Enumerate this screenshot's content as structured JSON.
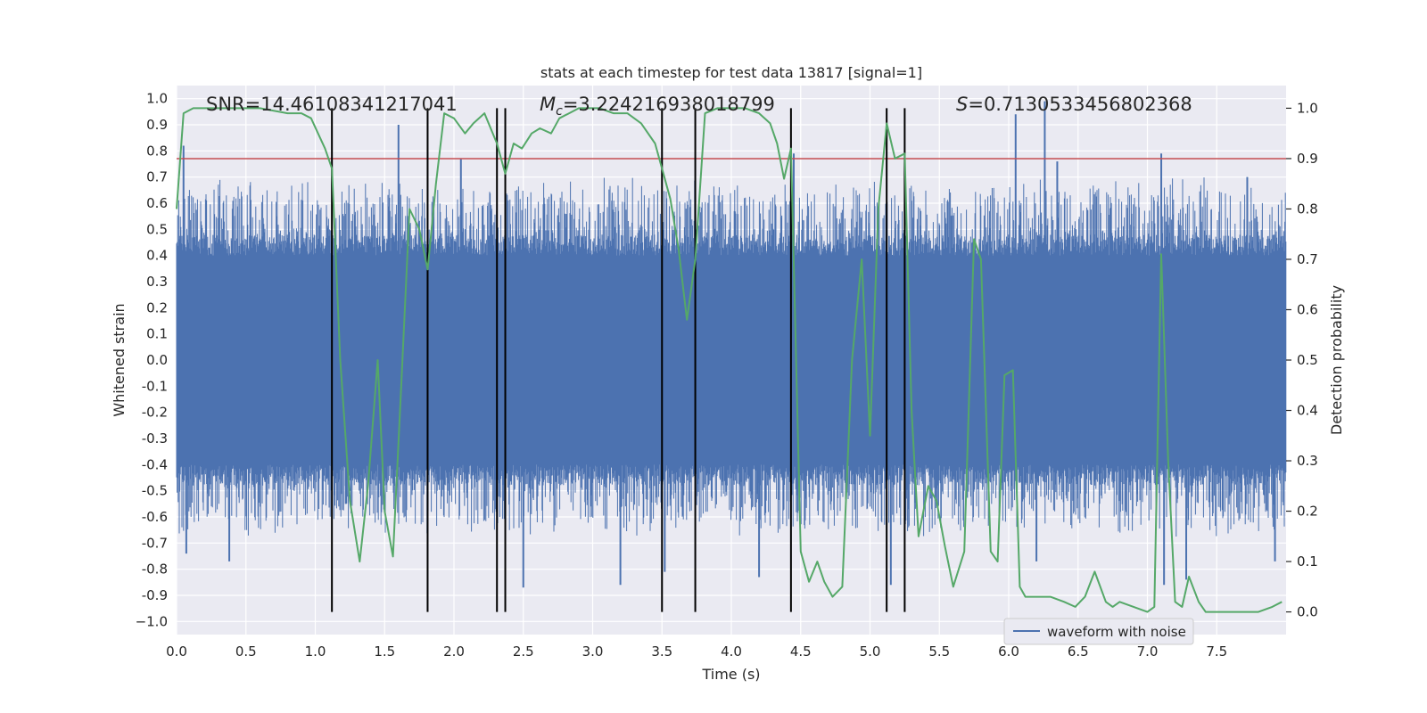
{
  "chart_data": {
    "type": "line",
    "title": "stats at each timestep for test data 13817 [signal=1]",
    "xlabel": "Time (s)",
    "ylabel": "Whitened strain",
    "y2label": "Detection probability",
    "xlim": [
      0.0,
      8.0
    ],
    "ylim": [
      -1.05,
      1.05
    ],
    "y2lim": [
      -0.045,
      1.045
    ],
    "xticks": [
      "0.0",
      "0.5",
      "1.0",
      "1.5",
      "2.0",
      "2.5",
      "3.0",
      "3.5",
      "4.0",
      "4.5",
      "5.0",
      "5.5",
      "6.0",
      "6.5",
      "7.0",
      "7.5"
    ],
    "yticks": [
      "1.0",
      "0.9",
      "0.8",
      "0.7",
      "0.6",
      "0.5",
      "0.4",
      "0.3",
      "0.2",
      "0.1",
      "0.0",
      "-0.1",
      "-0.2",
      "-0.3",
      "-0.4",
      "-0.5",
      "-0.6",
      "-0.7",
      "-0.8",
      "-0.9",
      "−1.0"
    ],
    "y2ticks": [
      "1.0",
      "0.9",
      "0.8",
      "0.7",
      "0.6",
      "0.5",
      "0.4",
      "0.3",
      "0.2",
      "0.1",
      "0.0"
    ],
    "annotations": {
      "snr": "SNR=14.46108341217041",
      "mc_sub": "c",
      "mc_value": "=3.224216938018799",
      "s_value": "=0.7130533456802368"
    },
    "legend": {
      "label": "waveform with noise",
      "placement": "lower-right"
    },
    "threshold_prob": 0.9,
    "event_lines_x": [
      1.12,
      1.81,
      2.31,
      2.37,
      3.5,
      3.74,
      4.43,
      5.12,
      5.25
    ],
    "series": [
      {
        "name": "waveform with noise",
        "color": "#4c72b0",
        "approx_envelope": {
          "core": 0.4,
          "typical_max": 0.62,
          "typical_min": -0.6
        },
        "peaks": [
          {
            "x": 0.05,
            "y": 0.82
          },
          {
            "x": 0.07,
            "y": -0.74
          },
          {
            "x": 0.38,
            "y": -0.77
          },
          {
            "x": 1.22,
            "y": -0.55
          },
          {
            "x": 1.6,
            "y": 0.9
          },
          {
            "x": 2.05,
            "y": 0.77
          },
          {
            "x": 2.5,
            "y": -0.87
          },
          {
            "x": 3.2,
            "y": -0.86
          },
          {
            "x": 3.52,
            "y": -0.81
          },
          {
            "x": 4.2,
            "y": -0.83
          },
          {
            "x": 4.45,
            "y": 0.79
          },
          {
            "x": 5.15,
            "y": -0.86
          },
          {
            "x": 6.05,
            "y": 0.94
          },
          {
            "x": 6.2,
            "y": -0.77
          },
          {
            "x": 6.26,
            "y": 0.99
          },
          {
            "x": 6.35,
            "y": 0.76
          },
          {
            "x": 7.1,
            "y": 0.79
          },
          {
            "x": 7.12,
            "y": -0.86
          },
          {
            "x": 7.28,
            "y": -0.84
          },
          {
            "x": 7.72,
            "y": 0.7
          },
          {
            "x": 7.92,
            "y": -0.77
          }
        ]
      },
      {
        "name": "",
        "color": "#55a868",
        "axis": "right",
        "x": [
          0.0,
          0.05,
          0.12,
          0.3,
          0.6,
          0.8,
          0.9,
          0.97,
          1.02,
          1.07,
          1.12,
          1.18,
          1.25,
          1.32,
          1.38,
          1.45,
          1.5,
          1.56,
          1.62,
          1.68,
          1.75,
          1.81,
          1.87,
          1.93,
          2.0,
          2.08,
          2.14,
          2.22,
          2.31,
          2.37,
          2.43,
          2.49,
          2.56,
          2.62,
          2.7,
          2.76,
          2.83,
          2.9,
          2.98,
          3.05,
          3.15,
          3.25,
          3.35,
          3.45,
          3.5,
          3.56,
          3.62,
          3.68,
          3.74,
          3.81,
          3.9,
          4.0,
          4.1,
          4.2,
          4.28,
          4.33,
          4.38,
          4.43,
          4.5,
          4.56,
          4.62,
          4.67,
          4.73,
          4.8,
          4.87,
          4.94,
          5.0,
          5.06,
          5.12,
          5.18,
          5.25,
          5.3,
          5.35,
          5.42,
          5.48,
          5.54,
          5.6,
          5.68,
          5.75,
          5.8,
          5.87,
          5.92,
          5.97,
          6.03,
          6.08,
          6.12,
          6.2,
          6.3,
          6.4,
          6.48,
          6.55,
          6.62,
          6.7,
          6.75,
          6.8,
          6.9,
          7.0,
          7.05,
          7.1,
          7.15,
          7.2,
          7.25,
          7.3,
          7.37,
          7.42,
          7.5,
          7.6,
          7.7,
          7.8,
          7.9,
          7.97
        ],
        "values": [
          0.8,
          0.99,
          1.0,
          1.0,
          1.0,
          0.99,
          0.99,
          0.98,
          0.95,
          0.92,
          0.88,
          0.5,
          0.22,
          0.1,
          0.25,
          0.5,
          0.2,
          0.11,
          0.45,
          0.8,
          0.76,
          0.68,
          0.85,
          0.99,
          0.98,
          0.95,
          0.97,
          0.99,
          0.93,
          0.87,
          0.93,
          0.92,
          0.95,
          0.96,
          0.95,
          0.98,
          0.99,
          1.0,
          1.0,
          1.0,
          0.99,
          0.99,
          0.97,
          0.93,
          0.88,
          0.82,
          0.72,
          0.58,
          0.7,
          0.99,
          1.0,
          1.0,
          1.0,
          0.99,
          0.97,
          0.93,
          0.86,
          0.92,
          0.12,
          0.06,
          0.1,
          0.06,
          0.03,
          0.05,
          0.5,
          0.7,
          0.35,
          0.8,
          0.97,
          0.9,
          0.91,
          0.4,
          0.15,
          0.25,
          0.22,
          0.13,
          0.05,
          0.12,
          0.74,
          0.7,
          0.12,
          0.1,
          0.47,
          0.48,
          0.05,
          0.03,
          0.03,
          0.03,
          0.02,
          0.01,
          0.03,
          0.08,
          0.02,
          0.01,
          0.02,
          0.01,
          0.0,
          0.01,
          0.71,
          0.3,
          0.02,
          0.01,
          0.07,
          0.02,
          0.0,
          0.0,
          0.0,
          0.0,
          0.0,
          0.01,
          0.02
        ]
      }
    ],
    "grid": true,
    "background": "#eaeaf2",
    "threshold_color": "#c44e52"
  }
}
